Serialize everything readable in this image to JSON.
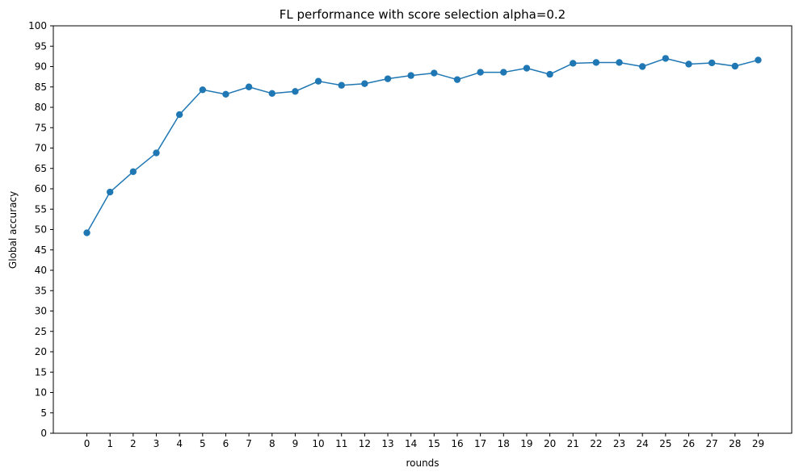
{
  "chart_data": {
    "type": "line",
    "title": "FL performance with score selection alpha=0.2",
    "xlabel": "rounds",
    "ylabel": "Global accuracy",
    "x": [
      0,
      1,
      2,
      3,
      4,
      5,
      6,
      7,
      8,
      9,
      10,
      11,
      12,
      13,
      14,
      15,
      16,
      17,
      18,
      19,
      20,
      21,
      22,
      23,
      24,
      25,
      26,
      27,
      28,
      29
    ],
    "series": [
      {
        "values": [
          49.2,
          59.2,
          64.2,
          68.8,
          78.2,
          84.3,
          83.2,
          85.0,
          83.4,
          83.9,
          86.4,
          85.4,
          85.8,
          87.0,
          87.8,
          88.4,
          86.8,
          88.6,
          88.6,
          89.6,
          88.1,
          90.8,
          91.0,
          91.0,
          90.0,
          92.0,
          90.6,
          90.9,
          90.1,
          91.6
        ],
        "color": "#1f77b4",
        "marker": "circle"
      }
    ],
    "xticks": [
      "0",
      "1",
      "2",
      "3",
      "4",
      "5",
      "6",
      "7",
      "8",
      "9",
      "10",
      "11",
      "12",
      "13",
      "14",
      "15",
      "16",
      "17",
      "18",
      "19",
      "20",
      "21",
      "22",
      "23",
      "24",
      "25",
      "26",
      "27",
      "28",
      "29"
    ],
    "yticks": [
      "0",
      "5",
      "10",
      "15",
      "20",
      "25",
      "30",
      "35",
      "40",
      "45",
      "50",
      "55",
      "60",
      "65",
      "70",
      "75",
      "80",
      "85",
      "90",
      "95",
      "100"
    ],
    "xlim": [
      -1.45,
      30.45
    ],
    "ylim": [
      0,
      100
    ],
    "grid": false,
    "legend": "none"
  }
}
